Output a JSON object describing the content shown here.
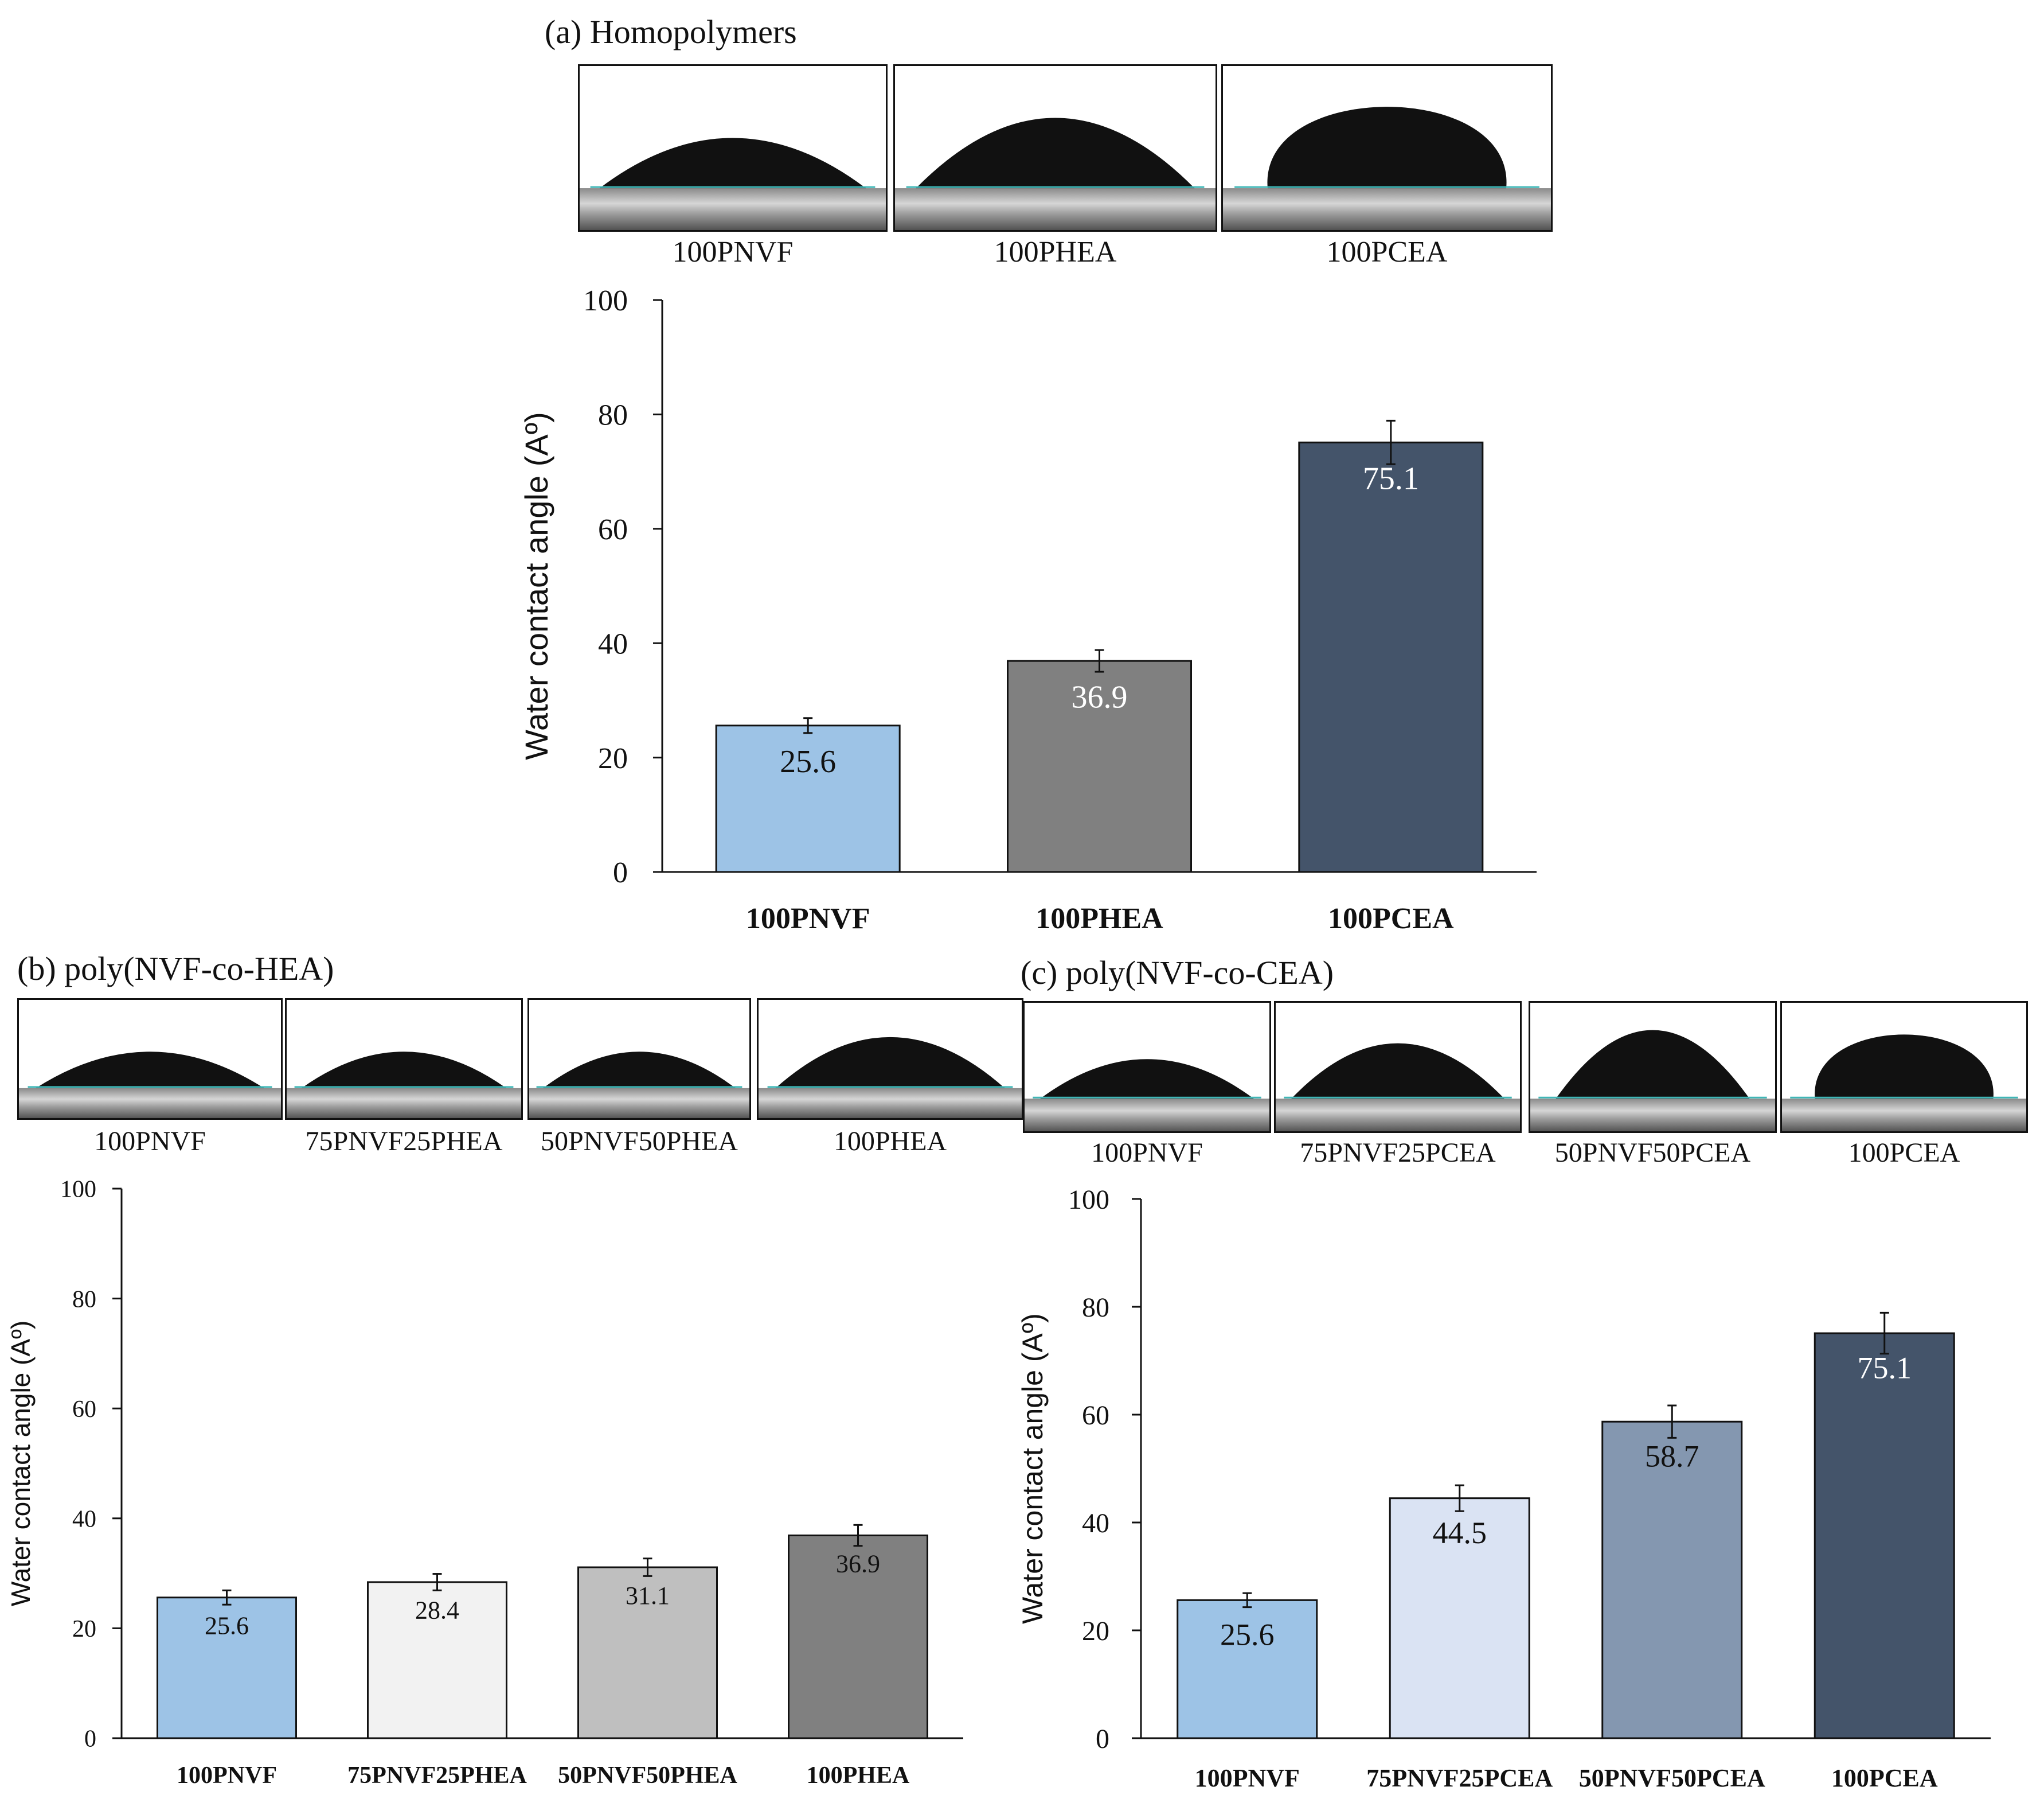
{
  "panels": [
    {
      "id": "a",
      "title": "(a) Homopolymers",
      "photos": [
        {
          "label": "100PNVF",
          "shape": "low"
        },
        {
          "label": "100PHEA",
          "shape": "medium"
        },
        {
          "label": "100PCEA",
          "shape": "high"
        }
      ]
    },
    {
      "id": "b",
      "title": "(b) poly(NVF-co-HEA)",
      "photos": [
        {
          "label": "100PNVF",
          "shape": "low"
        },
        {
          "label": "75PNVF25PHEA",
          "shape": "low"
        },
        {
          "label": "50PNVF50PHEA",
          "shape": "low"
        },
        {
          "label": "100PHEA",
          "shape": "medium"
        }
      ]
    },
    {
      "id": "c",
      "title": "(c) poly(NVF-co-CEA)",
      "photos": [
        {
          "label": "100PNVF",
          "shape": "low"
        },
        {
          "label": "75PNVF25PCEA",
          "shape": "medium"
        },
        {
          "label": "50PNVF50PCEA",
          "shape": "medium-high"
        },
        {
          "label": "100PCEA",
          "shape": "high"
        }
      ]
    }
  ],
  "chart_data": [
    {
      "id": "a",
      "type": "bar",
      "title": "",
      "xlabel": "",
      "ylabel": "Water contact angle (Aº)",
      "ylim": [
        0,
        100
      ],
      "yticks": [
        "0",
        "20",
        "40",
        "60",
        "80",
        "100"
      ],
      "categories": [
        "100PNVF",
        "100PHEA",
        "100PCEA"
      ],
      "values": [
        25.6,
        36.9,
        75.1
      ],
      "data_labels": [
        "25.6",
        "36.9",
        "75.1"
      ],
      "errors": [
        1.3,
        1.9,
        3.8
      ],
      "colors": [
        "#9dc3e6",
        "#808080",
        "#44546a"
      ],
      "label_colors": [
        "#111111",
        "#ffffff",
        "#ffffff"
      ],
      "grid": false
    },
    {
      "id": "b",
      "type": "bar",
      "title": "",
      "xlabel": "",
      "ylabel": "Water contact angle (Aº)",
      "ylim": [
        0,
        100
      ],
      "yticks": [
        "0",
        "20",
        "40",
        "60",
        "80",
        "100"
      ],
      "categories": [
        "100PNVF",
        "75PNVF25PHEA",
        "50PNVF50PHEA",
        "100PHEA"
      ],
      "values": [
        25.6,
        28.4,
        31.1,
        36.9
      ],
      "data_labels": [
        "25.6",
        "28.4",
        "31.1",
        "36.9"
      ],
      "errors": [
        1.3,
        1.5,
        1.6,
        1.9
      ],
      "colors": [
        "#9dc3e6",
        "#f2f2f2",
        "#bfbfbf",
        "#808080"
      ],
      "label_colors": [
        "#111111",
        "#111111",
        "#111111",
        "#111111"
      ],
      "grid": false
    },
    {
      "id": "c",
      "type": "bar",
      "title": "",
      "xlabel": "",
      "ylabel": "Water contact angle (Aº)",
      "ylim": [
        0,
        100
      ],
      "yticks": [
        "0",
        "20",
        "40",
        "60",
        "80",
        "100"
      ],
      "categories": [
        "100PNVF",
        "75PNVF25PCEA",
        "50PNVF50PCEA",
        "100PCEA"
      ],
      "values": [
        25.6,
        44.5,
        58.7,
        75.1
      ],
      "data_labels": [
        "25.6",
        "44.5",
        "58.7",
        "75.1"
      ],
      "errors": [
        1.3,
        2.4,
        3.0,
        3.8
      ],
      "colors": [
        "#9dc3e6",
        "#dae3f3",
        "#8497b0",
        "#44546a"
      ],
      "label_colors": [
        "#111111",
        "#111111",
        "#111111",
        "#ffffff"
      ],
      "grid": false
    }
  ]
}
